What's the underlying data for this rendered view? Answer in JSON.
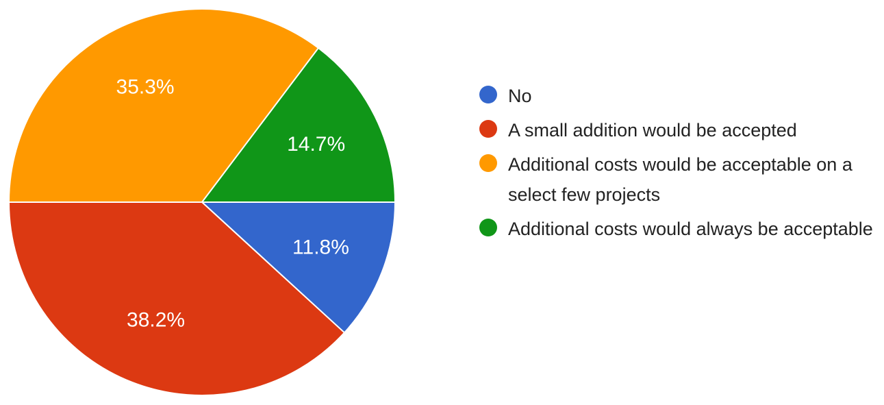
{
  "chart_data": {
    "type": "pie",
    "slices": [
      {
        "label": "No",
        "value": 11.8,
        "value_label": "11.8%",
        "color": "#3366CC"
      },
      {
        "label": "A small addition would be accepted",
        "value": 38.2,
        "value_label": "38.2%",
        "color": "#DC3912"
      },
      {
        "label": "Additional costs would be acceptable on a select few projects",
        "value": 35.3,
        "value_label": "35.3%",
        "color": "#FF9900"
      },
      {
        "label": "Additional costs would always be acceptable",
        "value": 14.7,
        "value_label": "14.7%",
        "color": "#109618"
      }
    ],
    "start_angle_deg": 90,
    "direction": "clockwise",
    "legend_position": "right"
  }
}
